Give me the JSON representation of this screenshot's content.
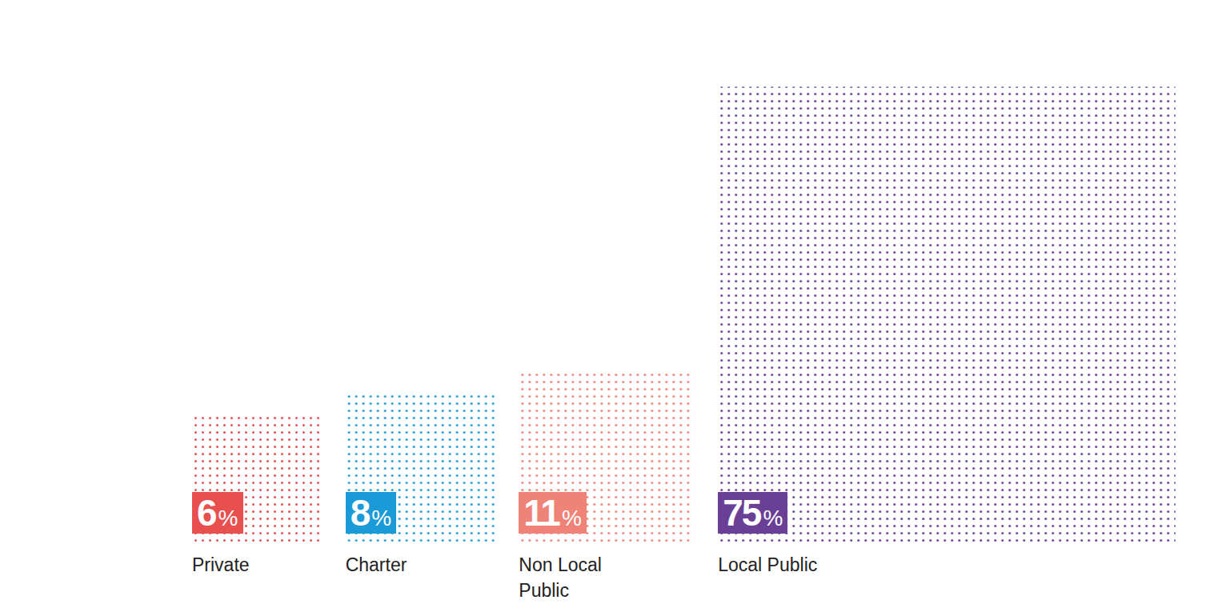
{
  "chart_data": {
    "type": "bar",
    "categories": [
      "Private",
      "Charter",
      "Non Local Public",
      "Local Public"
    ],
    "values": [
      6,
      8,
      11,
      75
    ],
    "value_labels": [
      "6%",
      "8%",
      "11%",
      "75%"
    ],
    "colors": [
      "#e8504f",
      "#1a9ad6",
      "#f08377",
      "#6a3f96"
    ],
    "data_labels": true,
    "tick_labels": "x"
  }
}
